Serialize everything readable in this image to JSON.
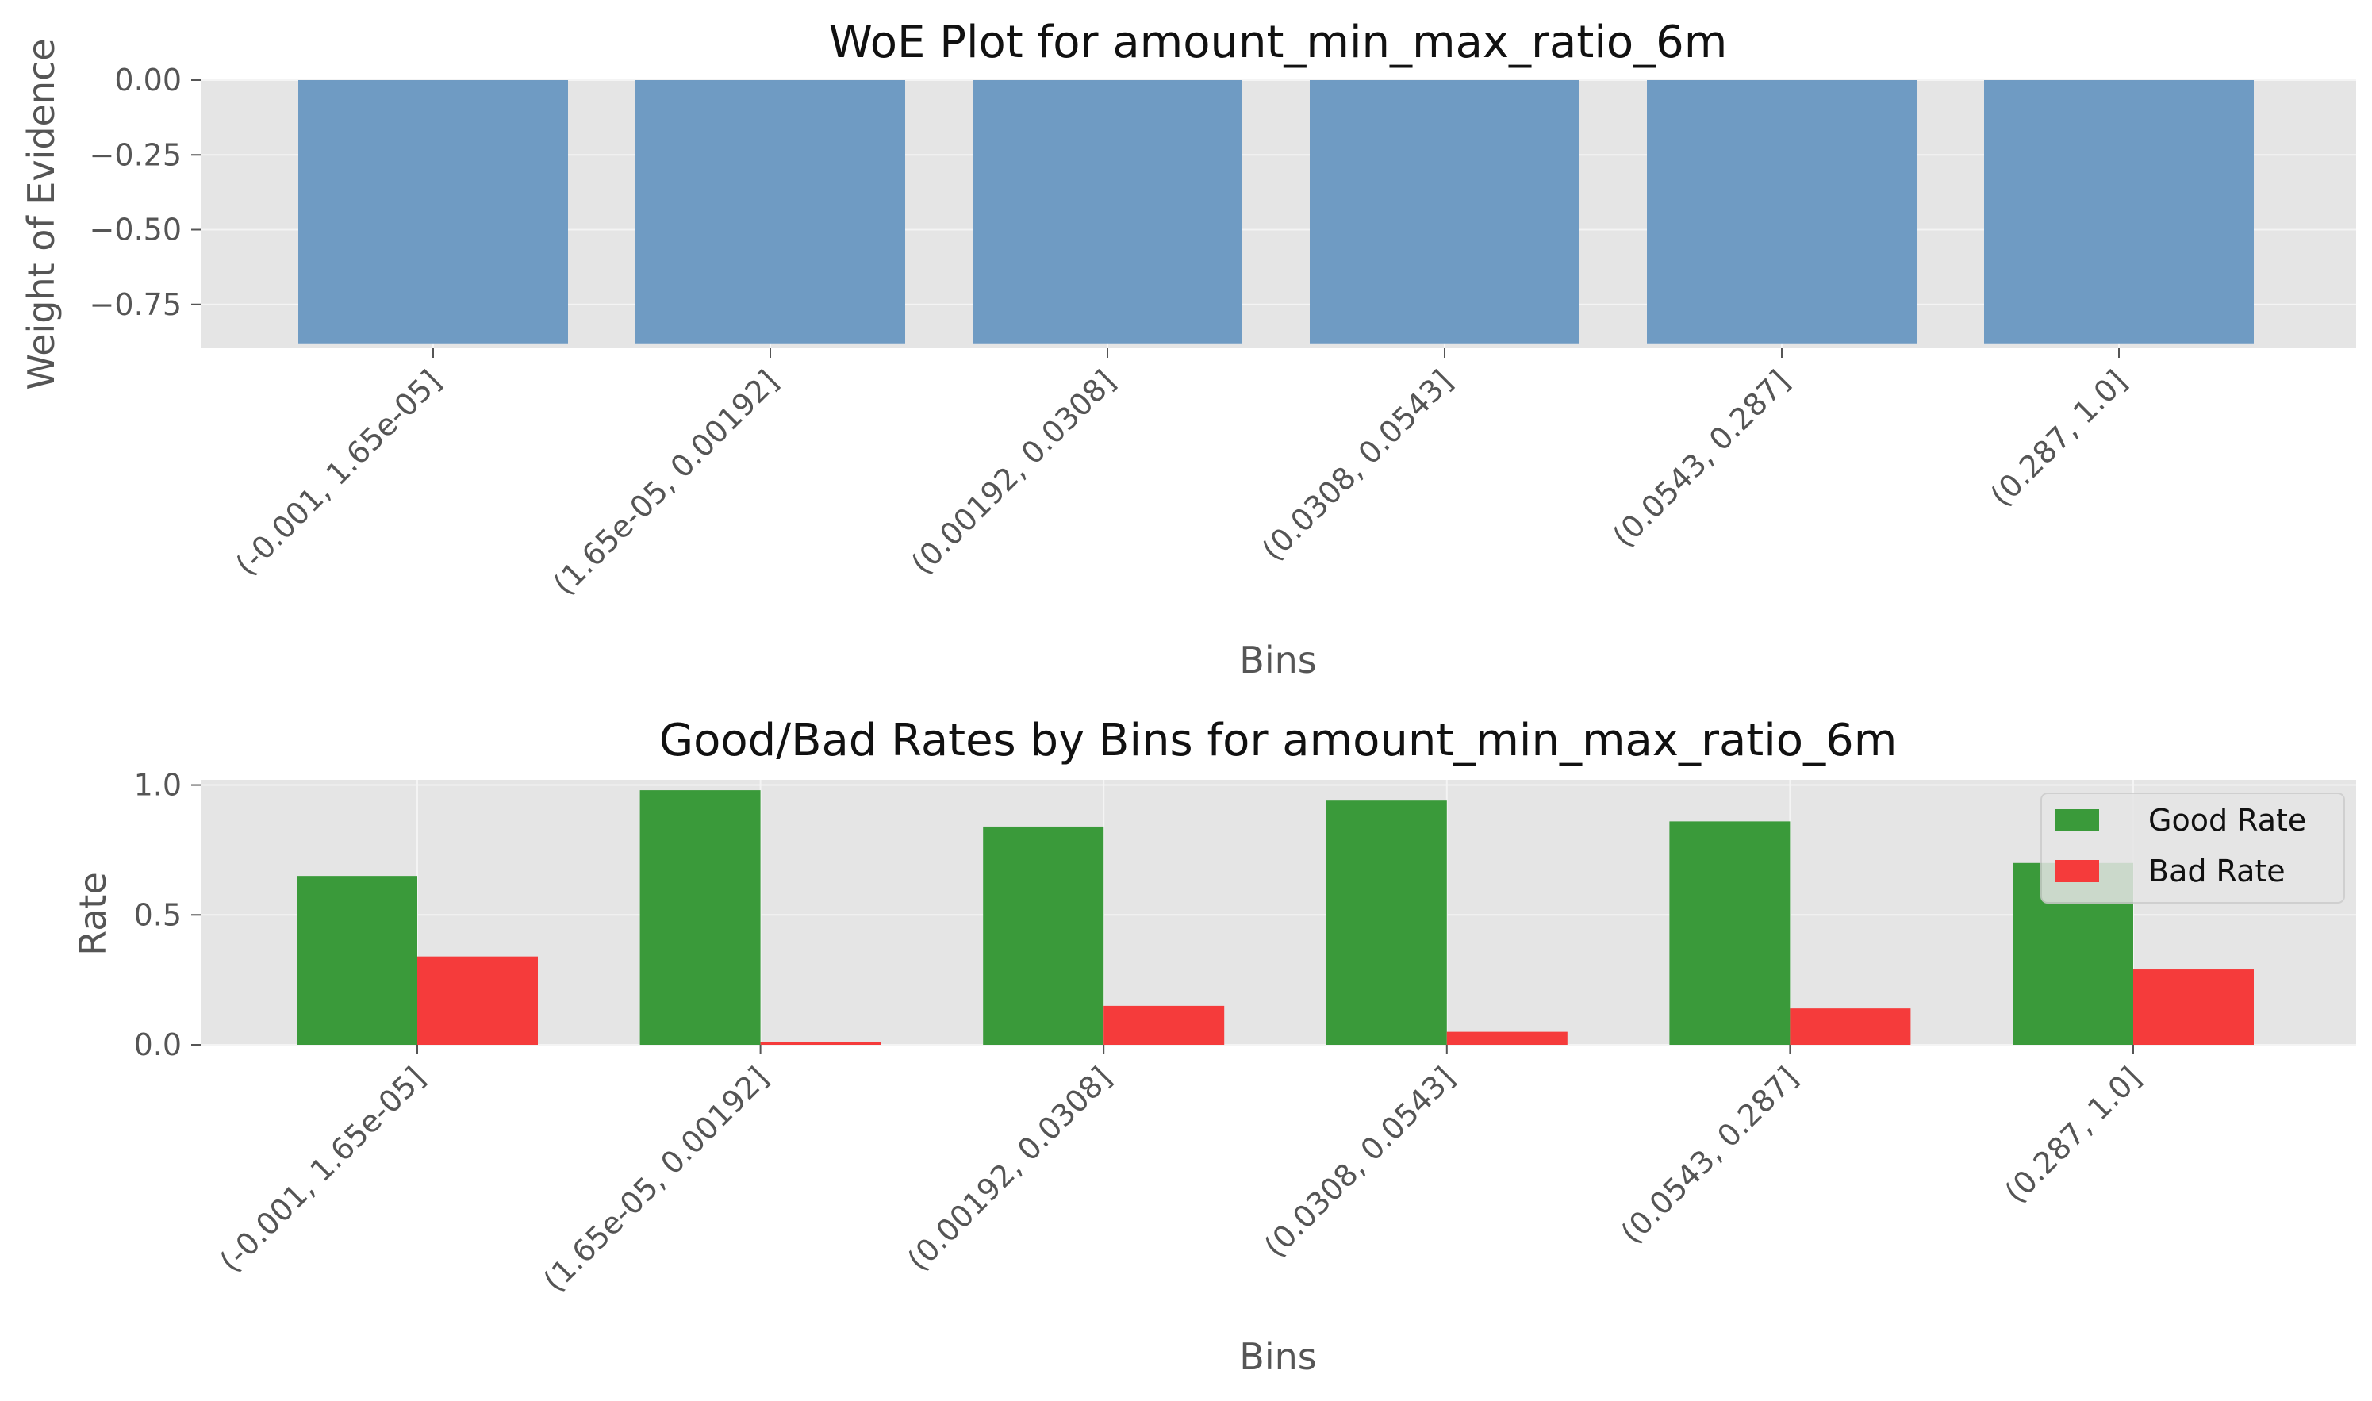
{
  "chart_data": [
    {
      "type": "bar",
      "title": "WoE Plot for amount_min_max_ratio_6m",
      "xlabel": "Bins",
      "ylabel": "Weight of Evidence",
      "categories": [
        "(-0.001, 1.65e-05]",
        "(1.65e-05, 0.00192]",
        "(0.00192, 0.0308]",
        "(0.0308, 0.0543]",
        "(0.0543, 0.287]",
        "(0.287, 1.0]"
      ],
      "values": [
        -0.88,
        -0.88,
        -0.88,
        -0.88,
        -0.88,
        -0.88
      ],
      "ylim": [
        -0.92,
        0.0
      ],
      "yticks": [
        0.0,
        -0.25,
        -0.5,
        -0.75
      ],
      "ytick_labels": [
        "0.00",
        "−0.25",
        "−0.50",
        "−0.75"
      ],
      "grid": true,
      "color": "#6f9bc3"
    },
    {
      "type": "bar",
      "title": "Good/Bad Rates by Bins for amount_min_max_ratio_6m",
      "xlabel": "Bins",
      "ylabel": "Rate",
      "categories": [
        "(-0.001, 1.65e-05]",
        "(1.65e-05, 0.00192]",
        "(0.00192, 0.0308]",
        "(0.0308, 0.0543]",
        "(0.0543, 0.287]",
        "(0.287, 1.0]"
      ],
      "series": [
        {
          "name": "Good Rate",
          "values": [
            0.65,
            0.98,
            0.84,
            0.94,
            0.86,
            0.7
          ],
          "color": "#3a9a3a"
        },
        {
          "name": "Bad Rate",
          "values": [
            0.34,
            0.01,
            0.15,
            0.05,
            0.14,
            0.29
          ],
          "color": "#f53b3b"
        }
      ],
      "ylim": [
        0.0,
        1.02
      ],
      "yticks": [
        0.0,
        0.5,
        1.0
      ],
      "ytick_labels": [
        "0.0",
        "0.5",
        "1.0"
      ],
      "grid": true,
      "legend": "top-right"
    }
  ]
}
